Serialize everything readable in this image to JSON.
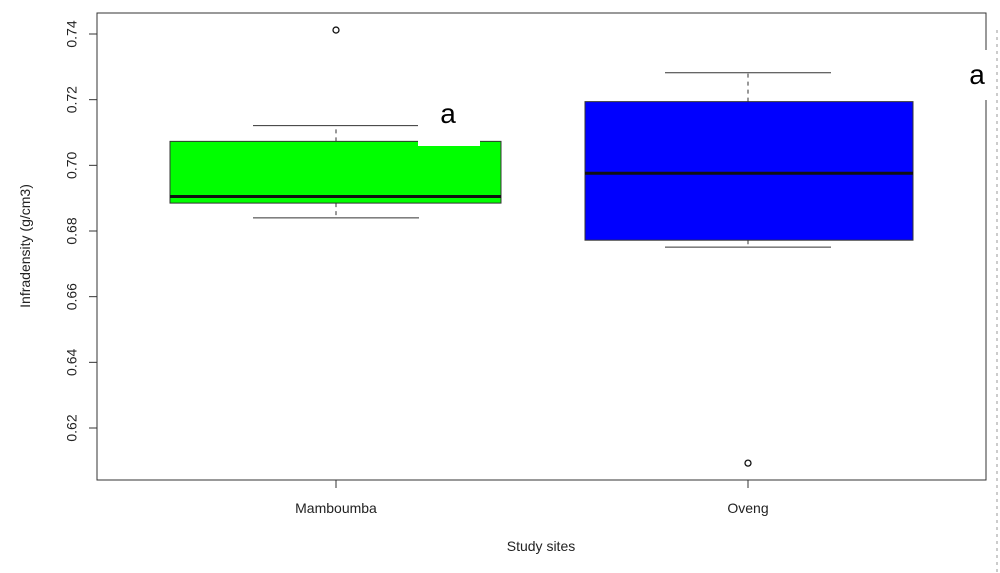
{
  "chart_data": {
    "type": "boxplot",
    "title": "",
    "xlabel": "Study sites",
    "ylabel": "Infradensity (g/cm3)",
    "ylim": [
      0.603,
      0.745
    ],
    "yticks": [
      "0.62",
      "0.64",
      "0.66",
      "0.68",
      "0.70",
      "0.72",
      "0.74"
    ],
    "grid": false,
    "categories": [
      "Mamboumba",
      "Oveng"
    ],
    "boxes": [
      {
        "name": "Mamboumba",
        "color": "#00ff00",
        "whisker_low": 0.684,
        "q1": 0.6885,
        "median": 0.6905,
        "q3": 0.7073,
        "whisker_high": 0.7121,
        "outliers": [
          0.7412
        ],
        "letter": "a"
      },
      {
        "name": "Oveng",
        "color": "#0000ff",
        "whisker_low": 0.6751,
        "q1": 0.6772,
        "median": 0.6976,
        "q3": 0.7194,
        "whisker_high": 0.7282,
        "outliers": [
          0.6093
        ],
        "letter": "a"
      }
    ]
  }
}
